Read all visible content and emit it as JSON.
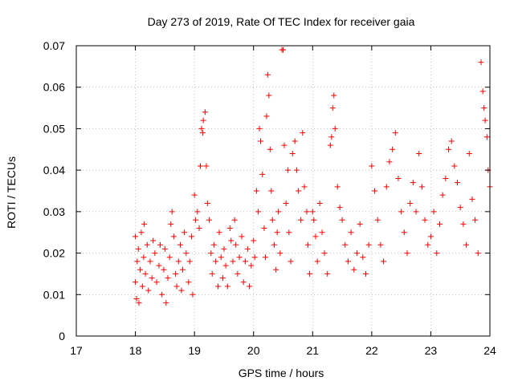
{
  "chart_data": {
    "type": "scatter",
    "title": "Day 273 of 2019, Rate Of TEC Index for receiver gaia",
    "xlabel": "GPS time / hours",
    "ylabel": "ROTI / TECUs",
    "xlim": [
      17,
      24
    ],
    "ylim": [
      0,
      0.07
    ],
    "x_ticks": [
      17,
      18,
      19,
      20,
      21,
      22,
      23,
      24
    ],
    "x_tick_labels": [
      "17",
      "18",
      "19",
      "20",
      "21",
      "22",
      "23",
      "24"
    ],
    "y_ticks": [
      0,
      0.01,
      0.02,
      0.03,
      0.04,
      0.05,
      0.06,
      0.07
    ],
    "y_tick_labels": [
      "0",
      "0.01",
      "0.02",
      "0.03",
      "0.04",
      "0.05",
      "0.06",
      "0.07"
    ],
    "grid": true,
    "marker": "+",
    "color": "#ff0000",
    "series": [
      {
        "name": "ROTI",
        "points": [
          [
            18.0,
            0.024
          ],
          [
            18.0,
            0.013
          ],
          [
            18.02,
            0.009
          ],
          [
            18.03,
            0.018
          ],
          [
            18.05,
            0.021
          ],
          [
            18.06,
            0.008
          ],
          [
            18.08,
            0.016
          ],
          [
            18.1,
            0.025
          ],
          [
            18.12,
            0.012
          ],
          [
            18.14,
            0.019
          ],
          [
            18.15,
            0.027
          ],
          [
            18.17,
            0.015
          ],
          [
            18.2,
            0.022
          ],
          [
            18.22,
            0.011
          ],
          [
            18.25,
            0.018
          ],
          [
            18.28,
            0.014
          ],
          [
            18.3,
            0.023
          ],
          [
            18.33,
            0.02
          ],
          [
            18.36,
            0.013
          ],
          [
            18.4,
            0.017
          ],
          [
            18.42,
            0.022
          ],
          [
            18.45,
            0.01
          ],
          [
            18.48,
            0.016
          ],
          [
            18.5,
            0.021
          ],
          [
            18.52,
            0.008
          ],
          [
            18.55,
            0.014
          ],
          [
            18.58,
            0.019
          ],
          [
            18.6,
            0.027
          ],
          [
            18.62,
            0.03
          ],
          [
            18.65,
            0.024
          ],
          [
            18.68,
            0.015
          ],
          [
            18.7,
            0.012
          ],
          [
            18.73,
            0.018
          ],
          [
            18.76,
            0.022
          ],
          [
            18.78,
            0.011
          ],
          [
            18.8,
            0.016
          ],
          [
            18.83,
            0.025
          ],
          [
            18.86,
            0.02
          ],
          [
            18.9,
            0.013
          ],
          [
            18.92,
            0.018
          ],
          [
            18.95,
            0.024
          ],
          [
            18.97,
            0.01
          ],
          [
            19.0,
            0.034
          ],
          [
            19.02,
            0.028
          ],
          [
            19.05,
            0.03
          ],
          [
            19.08,
            0.026
          ],
          [
            19.1,
            0.041
          ],
          [
            19.12,
            0.05
          ],
          [
            19.14,
            0.049
          ],
          [
            19.15,
            0.052
          ],
          [
            19.18,
            0.054
          ],
          [
            19.2,
            0.041
          ],
          [
            19.22,
            0.032
          ],
          [
            19.25,
            0.028
          ],
          [
            19.28,
            0.02
          ],
          [
            19.3,
            0.015
          ],
          [
            19.33,
            0.022
          ],
          [
            19.36,
            0.018
          ],
          [
            19.4,
            0.012
          ],
          [
            19.42,
            0.025
          ],
          [
            19.45,
            0.019
          ],
          [
            19.48,
            0.014
          ],
          [
            19.5,
            0.021
          ],
          [
            19.53,
            0.017
          ],
          [
            19.56,
            0.012
          ],
          [
            19.6,
            0.026
          ],
          [
            19.62,
            0.023
          ],
          [
            19.65,
            0.018
          ],
          [
            19.68,
            0.028
          ],
          [
            19.7,
            0.022
          ],
          [
            19.73,
            0.015
          ],
          [
            19.76,
            0.019
          ],
          [
            19.8,
            0.024
          ],
          [
            19.83,
            0.013
          ],
          [
            19.86,
            0.018
          ],
          [
            19.9,
            0.021
          ],
          [
            19.93,
            0.012
          ],
          [
            19.96,
            0.017
          ],
          [
            20.0,
            0.023
          ],
          [
            20.02,
            0.019
          ],
          [
            20.05,
            0.035
          ],
          [
            20.08,
            0.03
          ],
          [
            20.1,
            0.05
          ],
          [
            20.12,
            0.047
          ],
          [
            20.15,
            0.039
          ],
          [
            20.18,
            0.026
          ],
          [
            20.2,
            0.019
          ],
          [
            20.22,
            0.053
          ],
          [
            20.24,
            0.063
          ],
          [
            20.26,
            0.058
          ],
          [
            20.28,
            0.045
          ],
          [
            20.3,
            0.035
          ],
          [
            20.32,
            0.028
          ],
          [
            20.35,
            0.022
          ],
          [
            20.38,
            0.016
          ],
          [
            20.4,
            0.025
          ],
          [
            20.42,
            0.03
          ],
          [
            20.45,
            0.02
          ],
          [
            20.48,
            0.069
          ],
          [
            20.5,
            0.069
          ],
          [
            20.52,
            0.046
          ],
          [
            20.55,
            0.032
          ],
          [
            20.58,
            0.04
          ],
          [
            20.6,
            0.025
          ],
          [
            20.63,
            0.018
          ],
          [
            20.66,
            0.044
          ],
          [
            20.7,
            0.047
          ],
          [
            20.73,
            0.04
          ],
          [
            20.76,
            0.035
          ],
          [
            20.8,
            0.028
          ],
          [
            20.83,
            0.049
          ],
          [
            20.86,
            0.036
          ],
          [
            20.9,
            0.03
          ],
          [
            20.92,
            0.022
          ],
          [
            20.95,
            0.015
          ],
          [
            21.0,
            0.03
          ],
          [
            21.02,
            0.028
          ],
          [
            21.05,
            0.024
          ],
          [
            21.08,
            0.018
          ],
          [
            21.12,
            0.032
          ],
          [
            21.16,
            0.025
          ],
          [
            21.2,
            0.02
          ],
          [
            21.25,
            0.015
          ],
          [
            21.3,
            0.046
          ],
          [
            21.32,
            0.048
          ],
          [
            21.34,
            0.055
          ],
          [
            21.36,
            0.058
          ],
          [
            21.38,
            0.05
          ],
          [
            21.42,
            0.036
          ],
          [
            21.46,
            0.031
          ],
          [
            21.5,
            0.028
          ],
          [
            21.55,
            0.022
          ],
          [
            21.6,
            0.018
          ],
          [
            21.65,
            0.025
          ],
          [
            21.7,
            0.016
          ],
          [
            21.75,
            0.02
          ],
          [
            21.8,
            0.027
          ],
          [
            21.85,
            0.019
          ],
          [
            21.9,
            0.015
          ],
          [
            21.95,
            0.022
          ],
          [
            22.0,
            0.041
          ],
          [
            22.05,
            0.035
          ],
          [
            22.1,
            0.028
          ],
          [
            22.15,
            0.022
          ],
          [
            22.2,
            0.018
          ],
          [
            22.25,
            0.036
          ],
          [
            22.3,
            0.042
          ],
          [
            22.35,
            0.045
          ],
          [
            22.4,
            0.049
          ],
          [
            22.45,
            0.038
          ],
          [
            22.5,
            0.03
          ],
          [
            22.55,
            0.025
          ],
          [
            22.6,
            0.02
          ],
          [
            22.65,
            0.032
          ],
          [
            22.7,
            0.037
          ],
          [
            22.75,
            0.03
          ],
          [
            22.8,
            0.044
          ],
          [
            22.85,
            0.036
          ],
          [
            22.9,
            0.028
          ],
          [
            22.95,
            0.022
          ],
          [
            23.0,
            0.024
          ],
          [
            23.05,
            0.03
          ],
          [
            23.1,
            0.02
          ],
          [
            23.15,
            0.027
          ],
          [
            23.2,
            0.034
          ],
          [
            23.25,
            0.038
          ],
          [
            23.3,
            0.045
          ],
          [
            23.35,
            0.047
          ],
          [
            23.4,
            0.041
          ],
          [
            23.45,
            0.037
          ],
          [
            23.5,
            0.031
          ],
          [
            23.55,
            0.027
          ],
          [
            23.6,
            0.022
          ],
          [
            23.65,
            0.044
          ],
          [
            23.7,
            0.033
          ],
          [
            23.75,
            0.028
          ],
          [
            23.8,
            0.02
          ],
          [
            23.85,
            0.066
          ],
          [
            23.88,
            0.059
          ],
          [
            23.9,
            0.055
          ],
          [
            23.92,
            0.052
          ],
          [
            23.95,
            0.048
          ],
          [
            23.97,
            0.04
          ],
          [
            24.0,
            0.036
          ]
        ]
      }
    ]
  }
}
